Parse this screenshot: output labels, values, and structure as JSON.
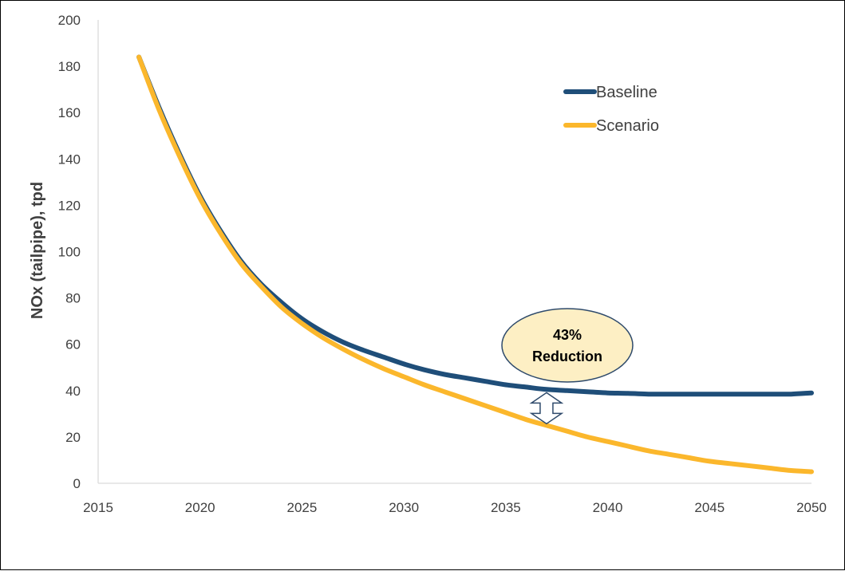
{
  "chart_data": {
    "type": "line",
    "title": "",
    "xlabel": "",
    "ylabel": "NOx (tailpipe), tpd",
    "xlim": [
      2015,
      2050
    ],
    "ylim": [
      0,
      200
    ],
    "x_ticks": [
      2015,
      2020,
      2025,
      2030,
      2035,
      2040,
      2045,
      2050
    ],
    "y_ticks": [
      0,
      20,
      40,
      60,
      80,
      100,
      120,
      140,
      160,
      180,
      200
    ],
    "grid": false,
    "legend": "top-right",
    "x": [
      2017,
      2018,
      2019,
      2020,
      2021,
      2022,
      2023,
      2024,
      2025,
      2026,
      2027,
      2028,
      2029,
      2030,
      2031,
      2032,
      2033,
      2034,
      2035,
      2036,
      2037,
      2038,
      2039,
      2040,
      2041,
      2042,
      2043,
      2044,
      2045,
      2046,
      2047,
      2048,
      2049,
      2050
    ],
    "series": [
      {
        "name": "Baseline",
        "color": "#1f4e79",
        "values": [
          184,
          162,
          142,
          124,
          109,
          96,
          86,
          78,
          71,
          65.5,
          61,
          57.5,
          54.5,
          51.5,
          49,
          47,
          45.5,
          44,
          42.5,
          41.5,
          40.5,
          40,
          39.5,
          39,
          38.8,
          38.5,
          38.5,
          38.5,
          38.5,
          38.5,
          38.5,
          38.5,
          38.5,
          39
        ]
      },
      {
        "name": "Scenario",
        "color": "#fbb72c",
        "values": [
          184,
          161,
          141,
          123,
          108,
          95,
          85,
          76,
          69,
          63,
          58,
          53.5,
          49.5,
          46,
          42.5,
          39.5,
          36.5,
          33.5,
          30.5,
          27.5,
          25,
          22.5,
          20,
          18,
          16,
          14,
          12.5,
          11,
          9.5,
          8.5,
          7.5,
          6.5,
          5.5,
          5
        ]
      }
    ],
    "annotation": {
      "line1": "43%",
      "line2": "Reduction",
      "x": 2037,
      "fill": "#fdefc4",
      "stroke": "#2e4a6b"
    }
  }
}
